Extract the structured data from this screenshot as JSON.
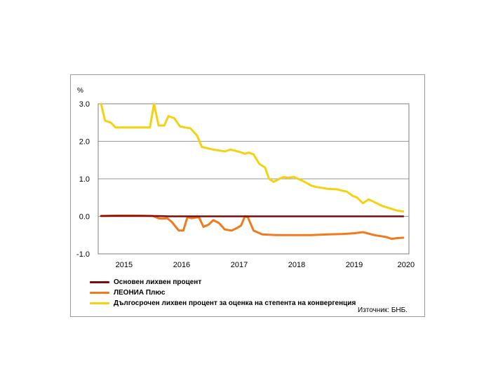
{
  "chart_data": {
    "type": "line",
    "unit_label": "%",
    "ylim": [
      -1.0,
      3.0
    ],
    "y_ticks": [
      "3.0",
      "2.0",
      "1.0",
      "0.0",
      "-1.0"
    ],
    "x_ticks": [
      "2015",
      "2016",
      "2017",
      "2018",
      "2019",
      "2020"
    ],
    "grid": true,
    "legend_position": "bottom",
    "source": "Източник: БНБ.",
    "series": [
      {
        "name": "Основен лихвен процент",
        "color": "#7b0c0c",
        "x": [
          2014.55,
          2015.2,
          2015.5,
          2015.75,
          2016.0,
          2017.0,
          2018.0,
          2019.0,
          2019.8
        ],
        "values": [
          0.01,
          0.01,
          0.01,
          0.0,
          0.0,
          0.0,
          0.0,
          0.0,
          0.0
        ]
      },
      {
        "name": "ЛЕОНИА Плюс",
        "color": "#f07a1c",
        "x": [
          2014.55,
          2014.8,
          2015.0,
          2015.2,
          2015.45,
          2015.55,
          2015.6,
          2015.7,
          2015.78,
          2015.9,
          2015.98,
          2016.05,
          2016.12,
          2016.25,
          2016.33,
          2016.42,
          2016.5,
          2016.6,
          2016.7,
          2016.82,
          2016.9,
          2016.98,
          2017.05,
          2017.1,
          2017.2,
          2017.35,
          2017.6,
          2017.85,
          2018.0,
          2018.2,
          2018.5,
          2018.75,
          2018.95,
          2019.1,
          2019.3,
          2019.5,
          2019.6,
          2019.7,
          2019.8
        ],
        "values": [
          0.01,
          0.02,
          0.02,
          0.02,
          0.01,
          -0.05,
          -0.06,
          -0.05,
          -0.15,
          -0.38,
          -0.38,
          -0.02,
          -0.05,
          -0.02,
          -0.28,
          -0.22,
          -0.1,
          -0.18,
          -0.35,
          -0.38,
          -0.32,
          -0.25,
          0.0,
          -0.02,
          -0.38,
          -0.48,
          -0.5,
          -0.5,
          -0.5,
          -0.5,
          -0.48,
          -0.47,
          -0.45,
          -0.42,
          -0.5,
          -0.55,
          -0.6,
          -0.58,
          -0.57
        ]
      },
      {
        "name": "Дългосрочен лихвен процент за оценка на степента на конвергенция",
        "color": "#f5d20f",
        "x": [
          2014.55,
          2014.62,
          2014.72,
          2014.8,
          2015.05,
          2015.25,
          2015.4,
          2015.47,
          2015.55,
          2015.65,
          2015.72,
          2015.82,
          2015.92,
          2016.0,
          2016.1,
          2016.22,
          2016.3,
          2016.5,
          2016.7,
          2016.8,
          2016.95,
          2017.05,
          2017.12,
          2017.2,
          2017.3,
          2017.4,
          2017.47,
          2017.55,
          2017.65,
          2017.72,
          2017.8,
          2017.9,
          2018.05,
          2018.2,
          2018.3,
          2018.5,
          2018.65,
          2018.75,
          2018.82,
          2018.92,
          2019.0,
          2019.1,
          2019.2,
          2019.3,
          2019.45,
          2019.6,
          2019.7,
          2019.8
        ],
        "values": [
          3.0,
          2.55,
          2.5,
          2.37,
          2.37,
          2.37,
          2.37,
          3.0,
          2.42,
          2.42,
          2.67,
          2.62,
          2.4,
          2.37,
          2.35,
          2.15,
          1.85,
          1.78,
          1.73,
          1.78,
          1.72,
          1.67,
          1.7,
          1.65,
          1.4,
          1.3,
          1.0,
          0.92,
          1.0,
          1.05,
          1.03,
          1.05,
          0.95,
          0.82,
          0.78,
          0.73,
          0.72,
          0.68,
          0.66,
          0.55,
          0.5,
          0.35,
          0.45,
          0.38,
          0.27,
          0.2,
          0.15,
          0.13
        ]
      }
    ]
  }
}
